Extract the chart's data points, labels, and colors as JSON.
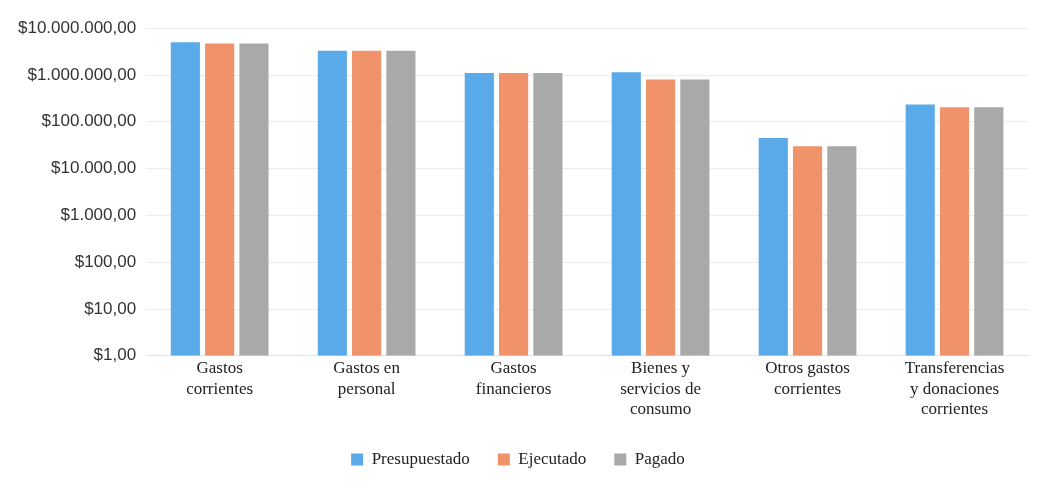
{
  "chart_data": {
    "type": "bar",
    "categories": [
      "Gastos corrientes",
      "Gastos en personal",
      "Gastos financieros",
      "Bienes y servicios de consumo",
      "Otros gastos corrientes",
      "Transferencias y donaciones corrientes"
    ],
    "series": [
      {
        "name": "Presupuestado",
        "color": "#5aa9e8",
        "values": [
          5000000,
          3300000,
          1100000,
          1150000,
          45000,
          235000
        ]
      },
      {
        "name": "Ejecutado",
        "color": "#f0936a",
        "values": [
          4700000,
          3300000,
          1100000,
          800000,
          30000,
          205000
        ]
      },
      {
        "name": "Pagado",
        "color": "#a9a9a9",
        "values": [
          4700000,
          3300000,
          1100000,
          800000,
          30000,
          205000
        ]
      }
    ],
    "log": true,
    "ylim": [
      1,
      10000000
    ],
    "yticks": [
      {
        "value": 1,
        "label": "$1,00"
      },
      {
        "value": 10,
        "label": "$10,00"
      },
      {
        "value": 100,
        "label": "$100,00"
      },
      {
        "value": 1000,
        "label": "$1.000,00"
      },
      {
        "value": 10000,
        "label": "$10.000,00"
      },
      {
        "value": 100000,
        "label": "$100.000,00"
      },
      {
        "value": 1000000,
        "label": "$1.000.000,00"
      },
      {
        "value": 10000000,
        "label": "$10.000.000,00"
      }
    ],
    "grid": "y",
    "legend": "bottom"
  }
}
